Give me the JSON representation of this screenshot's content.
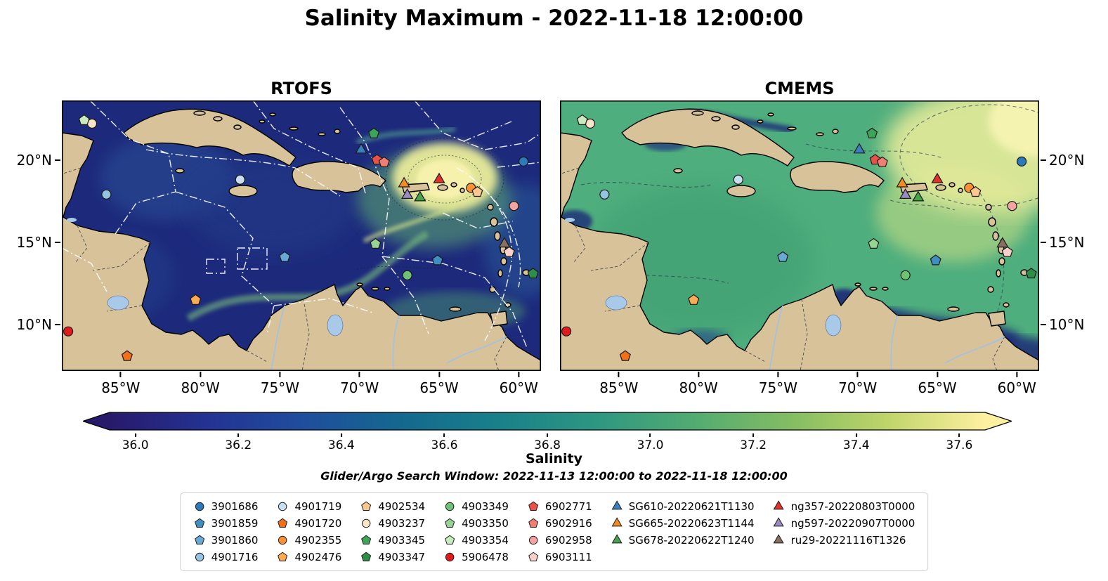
{
  "title": "Salinity Maximum - 2022-11-18 12:00:00",
  "chart_data": {
    "type": "heatmap",
    "description": "Two-panel geographic salinity maximum comparison over the Caribbean Sea",
    "panels": [
      {
        "title": "RTOFS"
      },
      {
        "title": "CMEMS"
      }
    ],
    "map_extent": {
      "lon_min": -88.7,
      "lon_max": -58.6,
      "lat_min": 7.2,
      "lat_max": 23.6
    },
    "lon_ticks": [
      {
        "value": -85,
        "label": "85°W"
      },
      {
        "value": -80,
        "label": "80°W"
      },
      {
        "value": -75,
        "label": "75°W"
      },
      {
        "value": -70,
        "label": "70°W"
      },
      {
        "value": -65,
        "label": "65°W"
      },
      {
        "value": -60,
        "label": "60°W"
      }
    ],
    "lat_ticks": [
      {
        "value": 20,
        "label": "20°N"
      },
      {
        "value": 15,
        "label": "15°N"
      },
      {
        "value": 10,
        "label": "10°N"
      }
    ],
    "colorbar": {
      "label": "Salinity",
      "range": [
        35.95,
        37.65
      ],
      "tick_values": [
        36.0,
        36.2,
        36.4,
        36.6,
        36.8,
        37.0,
        37.2,
        37.4,
        37.6
      ],
      "tick_labels": [
        "36.0",
        "36.2",
        "36.4",
        "36.6",
        "36.8",
        "37.0",
        "37.2",
        "37.4",
        "37.6"
      ],
      "colors": [
        "#271a6b",
        "#243293",
        "#1f4e9d",
        "#14688f",
        "#19808a",
        "#2e9781",
        "#52ab72",
        "#83bd63",
        "#c0d46a",
        "#fdf0a0"
      ]
    },
    "subtitle": "Glider/Argo Search Window: 2022-11-13 12:00:00 to 2022-11-18 12:00:00",
    "legend": {
      "columns": [
        [
          {
            "label": "3901686",
            "shape": "circle",
            "color": "#2b7bba"
          },
          {
            "label": "3901859",
            "shape": "pentagon",
            "color": "#3f8fc5"
          },
          {
            "label": "3901860",
            "shape": "pentagon",
            "color": "#67a9d4"
          },
          {
            "label": "4901716",
            "shape": "circle",
            "color": "#94c4df"
          }
        ],
        [
          {
            "label": "4901719",
            "shape": "circle",
            "color": "#c9dff0"
          },
          {
            "label": "4901720",
            "shape": "pentagon",
            "color": "#f3701b"
          },
          {
            "label": "4902355",
            "shape": "circle",
            "color": "#fb9130"
          },
          {
            "label": "4902476",
            "shape": "pentagon",
            "color": "#fcab50"
          }
        ],
        [
          {
            "label": "4902534",
            "shape": "pentagon",
            "color": "#fdc88f"
          },
          {
            "label": "4903237",
            "shape": "circle",
            "color": "#fbe5c8"
          },
          {
            "label": "4903345",
            "shape": "pentagon",
            "color": "#3da559"
          },
          {
            "label": "4903347",
            "shape": "pentagon",
            "color": "#2d8f47"
          }
        ],
        [
          {
            "label": "4903349",
            "shape": "circle",
            "color": "#6fc473"
          },
          {
            "label": "4903350",
            "shape": "pentagon",
            "color": "#97d494"
          },
          {
            "label": "4903354",
            "shape": "pentagon",
            "color": "#c9eabf"
          },
          {
            "label": "5906478",
            "shape": "circle",
            "color": "#e31a1c"
          }
        ],
        [
          {
            "label": "6902771",
            "shape": "pentagon",
            "color": "#e8504a"
          },
          {
            "label": "6902916",
            "shape": "pentagon",
            "color": "#f07e72"
          },
          {
            "label": "6902958",
            "shape": "circle",
            "color": "#f4a3a0"
          },
          {
            "label": "6903111",
            "shape": "pentagon",
            "color": "#f9cfc9"
          }
        ],
        [
          {
            "label": "SG610-20220621T1130",
            "shape": "triangle",
            "color": "#3a7fc0"
          },
          {
            "label": "SG665-20220623T1144",
            "shape": "triangle",
            "color": "#f68b1f"
          },
          {
            "label": "SG678-20220622T1240",
            "shape": "triangle",
            "color": "#47a349"
          }
        ],
        [
          {
            "label": "ng357-20220803T0000",
            "shape": "triangle",
            "color": "#e23127"
          },
          {
            "label": "ng597-20220907T0000",
            "shape": "triangle",
            "color": "#9a8bc4"
          },
          {
            "label": "ru29-20221116T1326",
            "shape": "triangle",
            "color": "#8a6f60"
          }
        ]
      ]
    },
    "markers": [
      {
        "id": "3901686",
        "lon": -59.7,
        "lat": 19.9
      },
      {
        "id": "3901859",
        "lon": -65.1,
        "lat": 13.9
      },
      {
        "id": "3901860",
        "lon": -74.7,
        "lat": 14.1
      },
      {
        "id": "4901716",
        "lon": -85.9,
        "lat": 17.9
      },
      {
        "id": "4901719",
        "lon": -77.5,
        "lat": 18.8
      },
      {
        "id": "4901720",
        "lon": -84.6,
        "lat": 8.1
      },
      {
        "id": "4902355",
        "lon": -63.0,
        "lat": 18.3
      },
      {
        "id": "4902476",
        "lon": -80.3,
        "lat": 11.5
      },
      {
        "id": "4902534",
        "lon": -62.6,
        "lat": 18.05
      },
      {
        "id": "4903237",
        "lon": -86.8,
        "lat": 22.2
      },
      {
        "id": "4903345",
        "lon": -69.1,
        "lat": 21.6
      },
      {
        "id": "4903347",
        "lon": -59.1,
        "lat": 13.1
      },
      {
        "id": "4903349",
        "lon": -67.0,
        "lat": 13.0
      },
      {
        "id": "4903350",
        "lon": -69.0,
        "lat": 14.9
      },
      {
        "id": "4903354",
        "lon": -87.3,
        "lat": 22.4
      },
      {
        "id": "5906478",
        "lon": -88.3,
        "lat": 9.6
      },
      {
        "id": "6902771",
        "lon": -68.9,
        "lat": 20.0
      },
      {
        "id": "6902916",
        "lon": -68.45,
        "lat": 19.85
      },
      {
        "id": "6902958",
        "lon": -60.3,
        "lat": 17.2
      },
      {
        "id": "6903111",
        "lon": -60.6,
        "lat": 14.4
      },
      {
        "id": "SG610-20220621T1130",
        "lon": -69.9,
        "lat": 20.6
      },
      {
        "id": "SG665-20220623T1144",
        "lon": -67.2,
        "lat": 18.55
      },
      {
        "id": "SG678-20220622T1240",
        "lon": -66.2,
        "lat": 17.7
      },
      {
        "id": "ng357-20220803T0000",
        "lon": -65.0,
        "lat": 18.8
      },
      {
        "id": "ng597-20220907T0000",
        "lon": -67.0,
        "lat": 17.85
      },
      {
        "id": "ru29-20221116T1326",
        "lon": -60.9,
        "lat": 14.9
      }
    ]
  }
}
